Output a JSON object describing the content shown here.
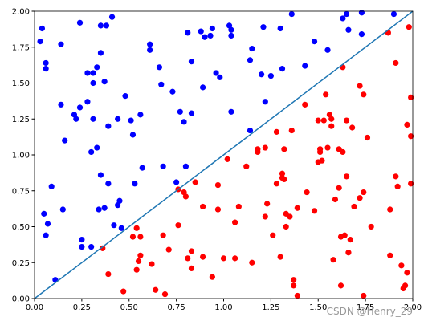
{
  "chart_data": {
    "type": "scatter",
    "xlim": [
      0,
      2
    ],
    "ylim": [
      0,
      2
    ],
    "xticks": [
      {
        "value": 0,
        "label": "0.00"
      },
      {
        "value": 0.25,
        "label": "0.25"
      },
      {
        "value": 0.5,
        "label": "0.50"
      },
      {
        "value": 0.75,
        "label": "0.75"
      },
      {
        "value": 1,
        "label": "1.00"
      },
      {
        "value": 1.25,
        "label": "1.25"
      },
      {
        "value": 1.5,
        "label": "1.50"
      },
      {
        "value": 1.75,
        "label": "1.75"
      },
      {
        "value": 2,
        "label": "2.00"
      }
    ],
    "yticks": [
      {
        "value": 0,
        "label": "0.00"
      },
      {
        "value": 0.25,
        "label": "0.25"
      },
      {
        "value": 0.5,
        "label": "0.50"
      },
      {
        "value": 0.75,
        "label": "0.75"
      },
      {
        "value": 1,
        "label": "1.00"
      },
      {
        "value": 1.25,
        "label": "1.25"
      },
      {
        "value": 1.5,
        "label": "1.50"
      },
      {
        "value": 1.75,
        "label": "1.75"
      },
      {
        "value": 2,
        "label": "2.00"
      }
    ],
    "series": [
      {
        "kind": "scatter",
        "color": "#0000ff",
        "x": [
          0.03,
          0.04,
          0.06,
          0.06,
          0.09,
          0.05,
          0.06,
          0.07,
          0.11,
          0.14,
          0.14,
          0.15,
          0.16,
          0.21,
          0.22,
          0.24,
          0.24,
          0.25,
          0.25,
          0.28,
          0.28,
          0.3,
          0.3,
          0.31,
          0.31,
          0.31,
          0.33,
          0.33,
          0.34,
          0.35,
          0.35,
          0.35,
          0.37,
          0.37,
          0.38,
          0.39,
          0.39,
          0.41,
          0.42,
          0.44,
          0.44,
          0.45,
          0.46,
          0.48,
          0.51,
          0.52,
          0.53,
          0.56,
          0.57,
          0.61,
          0.61,
          0.66,
          0.67,
          0.68,
          0.73,
          0.75,
          0.77,
          0.79,
          0.8,
          0.81,
          0.83,
          0.83,
          0.88,
          0.89,
          0.9,
          0.93,
          0.94,
          0.96,
          0.98,
          1.03,
          1.04,
          1.04,
          1.04,
          1.14,
          1.15,
          1.14,
          1.2,
          1.21,
          1.22,
          1.25,
          1.3,
          1.31,
          1.36,
          1.43,
          1.48,
          1.55,
          1.63,
          1.65,
          1.66,
          1.73,
          1.73,
          1.9
        ],
        "y": [
          1.79,
          1.88,
          1.64,
          1.6,
          0.78,
          0.59,
          0.44,
          0.52,
          0.13,
          1.35,
          1.77,
          0.62,
          1.1,
          1.28,
          1.25,
          1.92,
          1.33,
          0.41,
          0.36,
          1.37,
          1.57,
          0.36,
          1.02,
          1.57,
          1.5,
          1.25,
          1.61,
          1.05,
          0.62,
          1.71,
          0.86,
          1.9,
          0.63,
          1.51,
          1.9,
          1.2,
          0.8,
          1.96,
          0.51,
          1.25,
          0.65,
          0.68,
          0.49,
          1.41,
          1.24,
          1.14,
          0.8,
          1.28,
          0.91,
          1.77,
          1.73,
          1.61,
          1.49,
          0.92,
          1.44,
          0.81,
          1.3,
          1.23,
          0.92,
          1.85,
          1.65,
          1.29,
          1.86,
          1.47,
          1.82,
          1.83,
          1.88,
          1.57,
          1.54,
          1.9,
          1.83,
          1.3,
          1.87,
          1.17,
          1.74,
          1.66,
          1.56,
          1.89,
          1.37,
          1.55,
          1.88,
          1.6,
          1.98,
          1.62,
          1.79,
          1.73,
          1.95,
          1.98,
          1.87,
          1.99,
          1.84,
          1.98
        ]
      },
      {
        "kind": "scatter",
        "color": "#ff0000",
        "x": [
          0.36,
          0.39,
          0.47,
          0.52,
          0.54,
          0.55,
          0.56,
          0.56,
          0.54,
          0.62,
          0.64,
          0.68,
          0.69,
          0.71,
          0.76,
          0.76,
          0.79,
          0.8,
          0.81,
          0.83,
          0.83,
          0.85,
          0.89,
          0.89,
          0.94,
          0.97,
          0.97,
          1.0,
          1.02,
          1.06,
          1.06,
          1.08,
          1.12,
          1.15,
          1.18,
          1.18,
          1.22,
          1.22,
          1.23,
          1.26,
          1.28,
          1.28,
          1.3,
          1.31,
          1.32,
          1.31,
          1.32,
          1.33,
          1.33,
          1.35,
          1.36,
          1.37,
          1.37,
          1.39,
          1.39,
          1.43,
          1.44,
          1.48,
          1.5,
          1.5,
          1.51,
          1.51,
          1.52,
          1.53,
          1.54,
          1.55,
          1.56,
          1.57,
          1.57,
          1.58,
          1.59,
          1.61,
          1.61,
          1.62,
          1.62,
          1.63,
          1.63,
          1.64,
          1.65,
          1.65,
          1.66,
          1.67,
          1.68,
          1.69,
          1.72,
          1.72,
          1.74,
          1.74,
          1.74,
          1.76,
          1.78,
          1.87,
          1.88,
          1.88,
          1.91,
          1.91,
          1.92,
          1.94,
          1.95,
          1.96,
          1.97,
          1.97,
          1.98,
          1.99,
          1.99,
          1.99
        ],
        "y": [
          0.35,
          0.17,
          0.05,
          0.43,
          0.49,
          0.26,
          0.3,
          0.43,
          0.2,
          0.24,
          0.06,
          0.44,
          0.03,
          0.34,
          0.51,
          0.76,
          0.74,
          0.71,
          0.28,
          0.33,
          0.21,
          0.81,
          0.64,
          0.29,
          0.15,
          0.79,
          0.62,
          0.28,
          0.97,
          0.28,
          0.53,
          0.64,
          0.92,
          0.25,
          1.02,
          1.04,
          1.05,
          0.57,
          0.66,
          0.44,
          1.16,
          0.8,
          0.29,
          0.87,
          0.83,
          0.84,
          1.04,
          0.59,
          0.5,
          0.57,
          1.17,
          0.13,
          0.09,
          0.63,
          0.02,
          1.35,
          0.74,
          0.61,
          1.24,
          0.95,
          1.04,
          1.02,
          0.96,
          1.24,
          1.42,
          1.05,
          1.28,
          1.2,
          1.25,
          0.27,
          0.69,
          0.77,
          1.04,
          0.43,
          0.09,
          1.02,
          1.61,
          0.44,
          1.24,
          0.85,
          0.32,
          0.41,
          1.19,
          0.64,
          0.7,
          1.48,
          1.42,
          0.74,
          0.02,
          1.12,
          0.5,
          1.85,
          0.62,
          0.3,
          0.85,
          1.64,
          0.78,
          0.23,
          0.07,
          0.09,
          0.18,
          1.21,
          1.89,
          1.4,
          1.13,
          0.8
        ]
      },
      {
        "kind": "line",
        "color": "#1f77b4",
        "x": [
          0,
          2
        ],
        "y": [
          0,
          2
        ]
      }
    ],
    "watermark": "CSDN @Henry_29"
  }
}
